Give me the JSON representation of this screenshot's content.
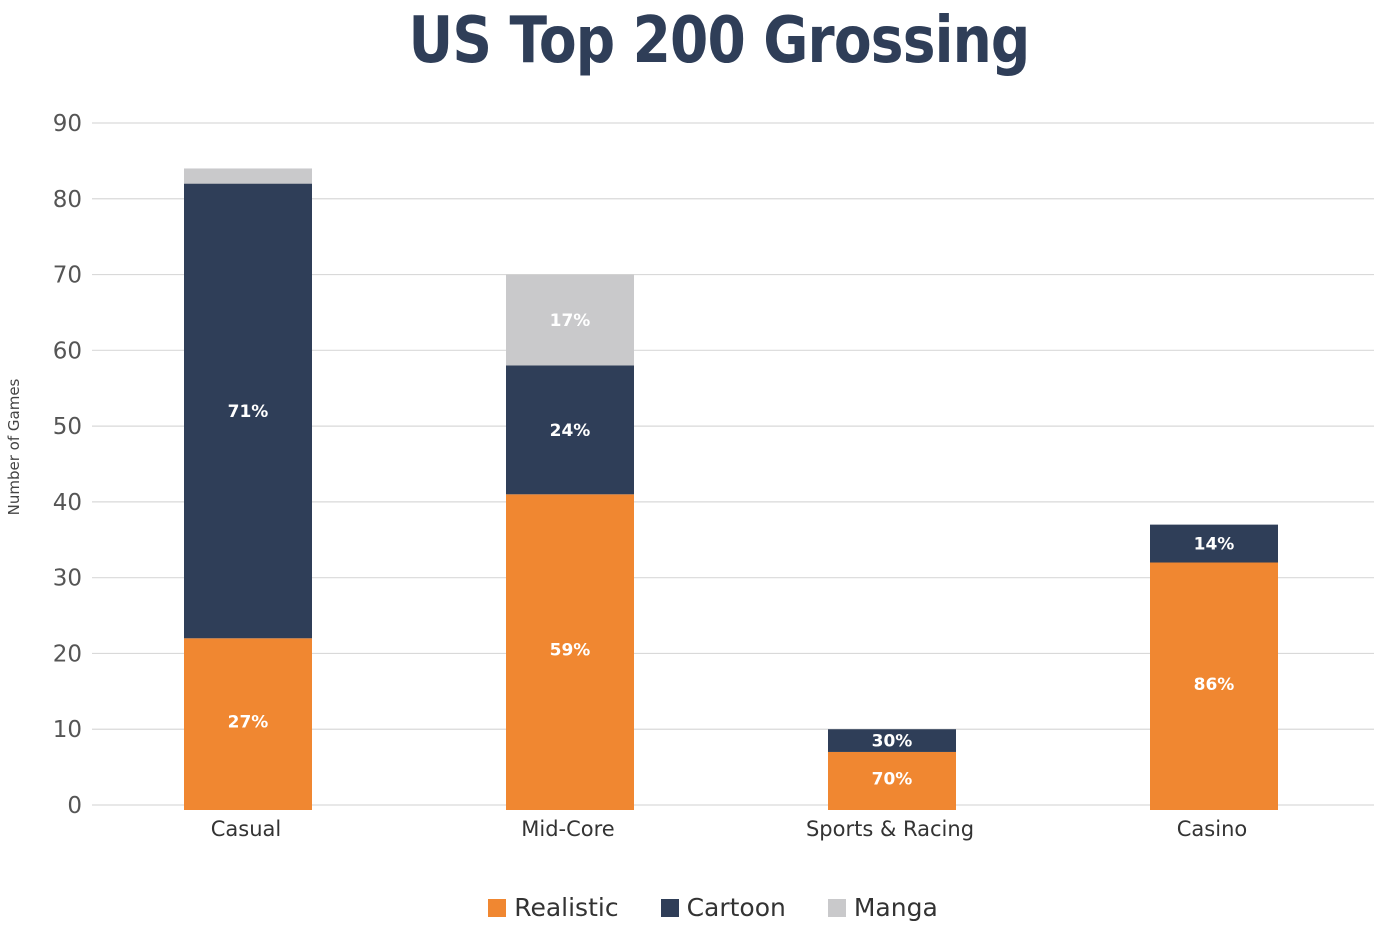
{
  "chart_data": {
    "type": "bar",
    "stacked": true,
    "title": "US Top 200 Grossing",
    "xlabel": "",
    "ylabel": "Number of Games",
    "ylim": [
      0,
      90
    ],
    "yticks": [
      0,
      10,
      20,
      30,
      40,
      50,
      60,
      70,
      80,
      90
    ],
    "grid": true,
    "legend_position": "bottom",
    "categories": [
      "Casual",
      "Mid-Core",
      "Sports & Racing",
      "Casino"
    ],
    "series": [
      {
        "name": "Realistic",
        "color": "#f08731",
        "values": [
          22,
          41,
          7,
          32
        ],
        "labels": [
          "27%",
          "59%",
          "70%",
          "86%"
        ]
      },
      {
        "name": "Cartoon",
        "color": "#2f3e58",
        "values": [
          60,
          17,
          3,
          5
        ],
        "labels": [
          "71%",
          "24%",
          "30%",
          "14%"
        ]
      },
      {
        "name": "Manga",
        "color": "#c9c9cb",
        "values": [
          2,
          12,
          0,
          0
        ],
        "labels": [
          "",
          "17%",
          "",
          ""
        ]
      }
    ]
  }
}
